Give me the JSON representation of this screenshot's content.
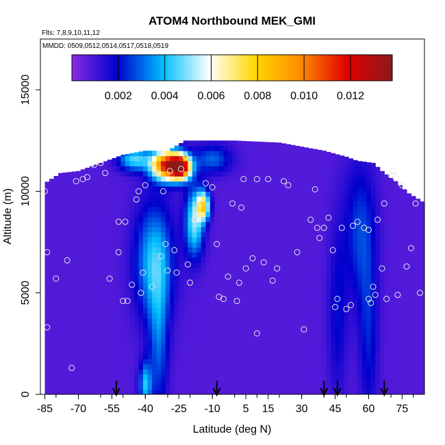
{
  "chart_data": {
    "type": "heatmap",
    "title": "ATOM4 Northbound MEK_GMI",
    "subtitle_flights": "Flts: 7,8,9,10,11,12",
    "subtitle_dates": "MMDD: 0509,0512,0514,0517,0518,0519",
    "xlabel": "Latitude (deg N)",
    "ylabel": "Altitude (m)",
    "xlim": [
      -87,
      85
    ],
    "ylim": [
      0,
      17500
    ],
    "x_ticks": [
      -85,
      -70,
      -55,
      -40,
      -25,
      -10,
      5,
      15,
      30,
      45,
      60,
      75
    ],
    "y_ticks": [
      0,
      5000,
      10000,
      15000
    ],
    "colorbar": {
      "range": [
        0,
        0.0138
      ],
      "tick_values": [
        0.002,
        0.004,
        0.006,
        0.008,
        0.01,
        0.012
      ],
      "tick_labels": [
        "0.002",
        "0.004",
        "0.006",
        "0.008",
        "0.010",
        "0.012"
      ],
      "colors": [
        "#8a2be2",
        "#0000cd",
        "#00bfff",
        "#ffffff",
        "#ffd700",
        "#ff8c00",
        "#e00000",
        "#8b1a1a"
      ]
    },
    "arrows_latitude": [
      -53,
      -8,
      40,
      46,
      67
    ],
    "field_background_value": 0.0008,
    "features": [
      {
        "lat": -36,
        "alt": 6500,
        "value": 0.0042,
        "sigma_lat": 6,
        "sigma_alt": 2000
      },
      {
        "lat": -34,
        "alt": 2500,
        "value": 0.0028,
        "sigma_lat": 3,
        "sigma_alt": 2500
      },
      {
        "lat": -40,
        "alt": 500,
        "value": 0.004,
        "sigma_lat": 2,
        "sigma_alt": 800
      },
      {
        "lat": -18,
        "alt": 8500,
        "value": 0.005,
        "sigma_lat": 3,
        "sigma_alt": 1200
      },
      {
        "lat": -14,
        "alt": 9300,
        "value": 0.007,
        "sigma_lat": 2,
        "sigma_alt": 500
      },
      {
        "lat": -30,
        "alt": 11300,
        "value": 0.012,
        "sigma_lat": 5,
        "sigma_alt": 500
      },
      {
        "lat": -24,
        "alt": 11200,
        "value": 0.011,
        "sigma_lat": 3,
        "sigma_alt": 400
      },
      {
        "lat": -45,
        "alt": 11600,
        "value": 0.0045,
        "sigma_lat": 5,
        "sigma_alt": 400
      },
      {
        "lat": -10,
        "alt": 11600,
        "value": 0.003,
        "sigma_lat": 6,
        "sigma_alt": 500
      },
      {
        "lat": 56,
        "alt": 8000,
        "value": 0.0026,
        "sigma_lat": 5,
        "sigma_alt": 2500
      },
      {
        "lat": 60,
        "alt": 3000,
        "value": 0.0022,
        "sigma_lat": 3,
        "sigma_alt": 3000
      },
      {
        "lat": 46,
        "alt": 4000,
        "value": 0.002,
        "sigma_lat": 3,
        "sigma_alt": 3000
      }
    ],
    "domain_top": [
      [
        -85,
        10400
      ],
      [
        -78,
        10900
      ],
      [
        -70,
        11000
      ],
      [
        -60,
        11400
      ],
      [
        -50,
        11800
      ],
      [
        -40,
        12000
      ],
      [
        -30,
        12000
      ],
      [
        -22,
        12500
      ],
      [
        0,
        12500
      ],
      [
        20,
        12400
      ],
      [
        30,
        12200
      ],
      [
        40,
        12000
      ],
      [
        50,
        11700
      ],
      [
        55,
        11500
      ],
      [
        62,
        11400
      ],
      [
        66,
        11000
      ],
      [
        72,
        10500
      ],
      [
        78,
        9900
      ],
      [
        84,
        9500
      ]
    ],
    "measurement_points": [
      [
        -85,
        10000
      ],
      [
        -84,
        7000
      ],
      [
        -84,
        3300
      ],
      [
        -80,
        5700
      ],
      [
        -75,
        6600
      ],
      [
        -73,
        1300
      ],
      [
        -71,
        10500
      ],
      [
        -68,
        10600
      ],
      [
        -66,
        10700
      ],
      [
        -63,
        11300
      ],
      [
        -60,
        11400
      ],
      [
        -58,
        10900
      ],
      [
        -56,
        5700
      ],
      [
        -52,
        8500
      ],
      [
        -52,
        7000
      ],
      [
        -50,
        4600
      ],
      [
        -49,
        8500
      ],
      [
        -48,
        4600
      ],
      [
        -46,
        5400
      ],
      [
        -44,
        9600
      ],
      [
        -43,
        10000
      ],
      [
        -42,
        5000
      ],
      [
        -41,
        6000
      ],
      [
        -40,
        10300
      ],
      [
        -37,
        5300
      ],
      [
        -34,
        10900
      ],
      [
        -33,
        6800
      ],
      [
        -32,
        10000
      ],
      [
        -31,
        7400
      ],
      [
        -30,
        6100
      ],
      [
        -29,
        11000
      ],
      [
        -27,
        7100
      ],
      [
        -26,
        6000
      ],
      [
        -24,
        11100
      ],
      [
        -22,
        11700
      ],
      [
        -21,
        6400
      ],
      [
        -20,
        5500
      ],
      [
        -18,
        8600
      ],
      [
        -15,
        9400
      ],
      [
        -13,
        10400
      ],
      [
        -10,
        10200
      ],
      [
        -8,
        7400
      ],
      [
        -7,
        4800
      ],
      [
        -5,
        4700
      ],
      [
        -3,
        5800
      ],
      [
        -1,
        9400
      ],
      [
        1,
        4600
      ],
      [
        2,
        5500
      ],
      [
        3,
        9200
      ],
      [
        4,
        10600
      ],
      [
        5,
        6200
      ],
      [
        8,
        6700
      ],
      [
        10,
        3000
      ],
      [
        10,
        10600
      ],
      [
        13,
        6500
      ],
      [
        15,
        10600
      ],
      [
        17,
        5600
      ],
      [
        19,
        6200
      ],
      [
        22,
        10500
      ],
      [
        24,
        10300
      ],
      [
        28,
        7000
      ],
      [
        31,
        3200
      ],
      [
        34,
        8600
      ],
      [
        36,
        10100
      ],
      [
        37,
        8200
      ],
      [
        38,
        7700
      ],
      [
        40,
        8200
      ],
      [
        42,
        8700
      ],
      [
        44,
        7100
      ],
      [
        45,
        4300
      ],
      [
        46,
        4700
      ],
      [
        48,
        8200
      ],
      [
        50,
        4200
      ],
      [
        52,
        4400
      ],
      [
        53,
        8300
      ],
      [
        55,
        8500
      ],
      [
        58,
        8200
      ],
      [
        60,
        8100
      ],
      [
        60,
        4700
      ],
      [
        61,
        4500
      ],
      [
        62,
        5300
      ],
      [
        63,
        4900
      ],
      [
        64,
        8600
      ],
      [
        66,
        6200
      ],
      [
        67,
        9400
      ],
      [
        68,
        4700
      ],
      [
        70,
        10800
      ],
      [
        71,
        11000
      ],
      [
        72,
        10700
      ],
      [
        73,
        4900
      ],
      [
        75,
        10300
      ],
      [
        77,
        6300
      ],
      [
        79,
        7200
      ],
      [
        81,
        9400
      ],
      [
        83,
        5000
      ]
    ],
    "grid": false,
    "legend_placement": "top (colorbar inside plot)"
  }
}
